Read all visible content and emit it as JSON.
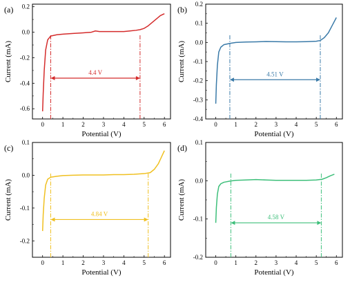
{
  "chart_data": [
    {
      "type": "line",
      "panel_label": "(a)",
      "xlabel": "Potential (V)",
      "ylabel": "Current (mA)",
      "xlim": [
        -0.5,
        6.3
      ],
      "ylim": [
        -0.68,
        0.22
      ],
      "xticks": [
        0,
        1,
        2,
        3,
        4,
        5,
        6
      ],
      "yticks": [
        -0.6,
        -0.4,
        -0.2,
        0.0,
        0.2
      ],
      "ytick_labels": [
        "-0.6",
        "-0.4",
        "-0.2",
        "0.0",
        "0.2"
      ],
      "color": "#d42b2b",
      "x": [
        0.0,
        0.03,
        0.08,
        0.15,
        0.25,
        0.4,
        0.7,
        1.0,
        1.5,
        2.0,
        2.4,
        2.6,
        2.8,
        3.0,
        3.5,
        4.0,
        4.3,
        4.6,
        4.8,
        5.0,
        5.2,
        5.5,
        5.8,
        6.0
      ],
      "y": [
        -0.62,
        -0.48,
        -0.3,
        -0.14,
        -0.06,
        -0.03,
        -0.02,
        -0.015,
        -0.01,
        -0.005,
        0.0,
        0.01,
        0.005,
        0.005,
        0.005,
        0.005,
        0.01,
        0.015,
        0.02,
        0.03,
        0.05,
        0.09,
        0.13,
        0.145
      ],
      "annotation": {
        "text": "4.4 V",
        "x_start": 0.4,
        "x_end": 4.8,
        "y": -0.36
      }
    },
    {
      "type": "line",
      "panel_label": "(b)",
      "xlabel": "Potential (V)",
      "ylabel": "Current (mA)",
      "xlim": [
        -0.5,
        6.3
      ],
      "ylim": [
        -0.4,
        0.2
      ],
      "xticks": [
        0,
        1,
        2,
        3,
        4,
        5,
        6
      ],
      "yticks": [
        -0.4,
        -0.3,
        -0.2,
        -0.1,
        0.0,
        0.1,
        0.2
      ],
      "ytick_labels": [
        "-0.4",
        "-0.3",
        "-0.2",
        "-0.1",
        "0.0",
        "0.1",
        "0.2"
      ],
      "color": "#3a7aa8",
      "x": [
        0.0,
        0.03,
        0.08,
        0.15,
        0.25,
        0.4,
        0.7,
        1.0,
        1.5,
        2.0,
        2.5,
        3.0,
        3.5,
        4.0,
        4.5,
        5.0,
        5.2,
        5.4,
        5.6,
        5.8,
        6.0
      ],
      "y": [
        -0.32,
        -0.22,
        -0.12,
        -0.05,
        -0.025,
        -0.012,
        -0.005,
        0.0,
        0.002,
        0.003,
        0.005,
        0.004,
        0.003,
        0.003,
        0.004,
        0.006,
        0.01,
        0.025,
        0.05,
        0.09,
        0.13
      ],
      "annotation": {
        "text": "4.51 V",
        "x_start": 0.7,
        "x_end": 5.2,
        "y": -0.195
      }
    },
    {
      "type": "line",
      "panel_label": "(c)",
      "xlabel": "Potential (V)",
      "ylabel": "Current (mA)",
      "xlim": [
        -0.5,
        6.3
      ],
      "ylim": [
        -0.25,
        0.1
      ],
      "xticks": [
        0,
        1,
        2,
        3,
        4,
        5,
        6
      ],
      "yticks": [
        -0.2,
        -0.1,
        0.0,
        0.1
      ],
      "ytick_labels": [
        "-0.2",
        "-0.1",
        "0.0",
        "0.1"
      ],
      "color": "#f0c020",
      "x": [
        0.0,
        0.03,
        0.08,
        0.15,
        0.25,
        0.4,
        0.7,
        1.0,
        1.5,
        2.0,
        2.5,
        3.0,
        3.5,
        4.0,
        4.5,
        5.0,
        5.3,
        5.5,
        5.7,
        5.85,
        6.0
      ],
      "y": [
        -0.17,
        -0.12,
        -0.07,
        -0.03,
        -0.012,
        -0.006,
        -0.003,
        -0.001,
        0.0,
        0.001,
        0.001,
        0.001,
        0.002,
        0.002,
        0.003,
        0.005,
        0.008,
        0.018,
        0.035,
        0.055,
        0.075
      ],
      "annotation": {
        "text": "4.84 V",
        "x_start": 0.4,
        "x_end": 5.2,
        "y": -0.135
      }
    },
    {
      "type": "line",
      "panel_label": "(d)",
      "xlabel": "Potential (V)",
      "ylabel": "Current (mA)",
      "xlim": [
        -0.5,
        6.3
      ],
      "ylim": [
        -0.2,
        0.1
      ],
      "xticks": [
        0,
        1,
        2,
        3,
        4,
        5,
        6
      ],
      "yticks": [
        -0.2,
        -0.1,
        0.0,
        0.1
      ],
      "ytick_labels": [
        "-0.2",
        "-0.1",
        "0.0",
        "0.1"
      ],
      "color": "#3dbf7a",
      "x": [
        0.0,
        0.03,
        0.08,
        0.15,
        0.25,
        0.4,
        0.7,
        1.0,
        1.5,
        2.0,
        2.5,
        3.0,
        3.5,
        4.0,
        4.5,
        5.0,
        5.3,
        5.5,
        5.7,
        5.9
      ],
      "y": [
        -0.11,
        -0.07,
        -0.035,
        -0.015,
        -0.008,
        -0.004,
        -0.001,
        0.001,
        0.002,
        0.003,
        0.002,
        0.001,
        0.001,
        0.001,
        0.001,
        0.002,
        0.004,
        0.008,
        0.013,
        0.017
      ],
      "annotation": {
        "text": "4.58 V",
        "x_start": 0.75,
        "x_end": 5.25,
        "y": -0.11
      }
    }
  ]
}
